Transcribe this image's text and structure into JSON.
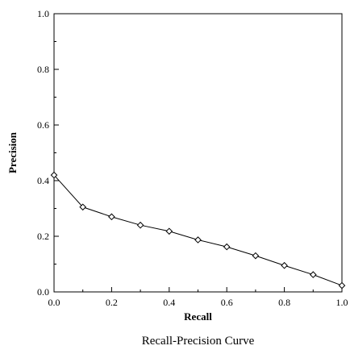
{
  "chart_data": {
    "type": "line",
    "title": "Recall-Precision Curve",
    "xlabel": "Recall",
    "ylabel": "Precision",
    "xlim": [
      0.0,
      1.0
    ],
    "ylim": [
      0.0,
      1.0
    ],
    "x_ticks": [
      "0.0",
      "0.2",
      "0.4",
      "0.6",
      "0.8",
      "1.0"
    ],
    "y_ticks": [
      "0.0",
      "0.2",
      "0.4",
      "0.6",
      "0.8",
      "1.0"
    ],
    "grid": false,
    "series": [
      {
        "marker": "open-diamond",
        "color": "#000000",
        "x": [
          0.0,
          0.1,
          0.2,
          0.3,
          0.4,
          0.5,
          0.6,
          0.7,
          0.8,
          0.9,
          1.0
        ],
        "y": [
          0.42,
          0.305,
          0.27,
          0.24,
          0.218,
          0.187,
          0.162,
          0.13,
          0.095,
          0.062,
          0.023
        ]
      }
    ]
  }
}
